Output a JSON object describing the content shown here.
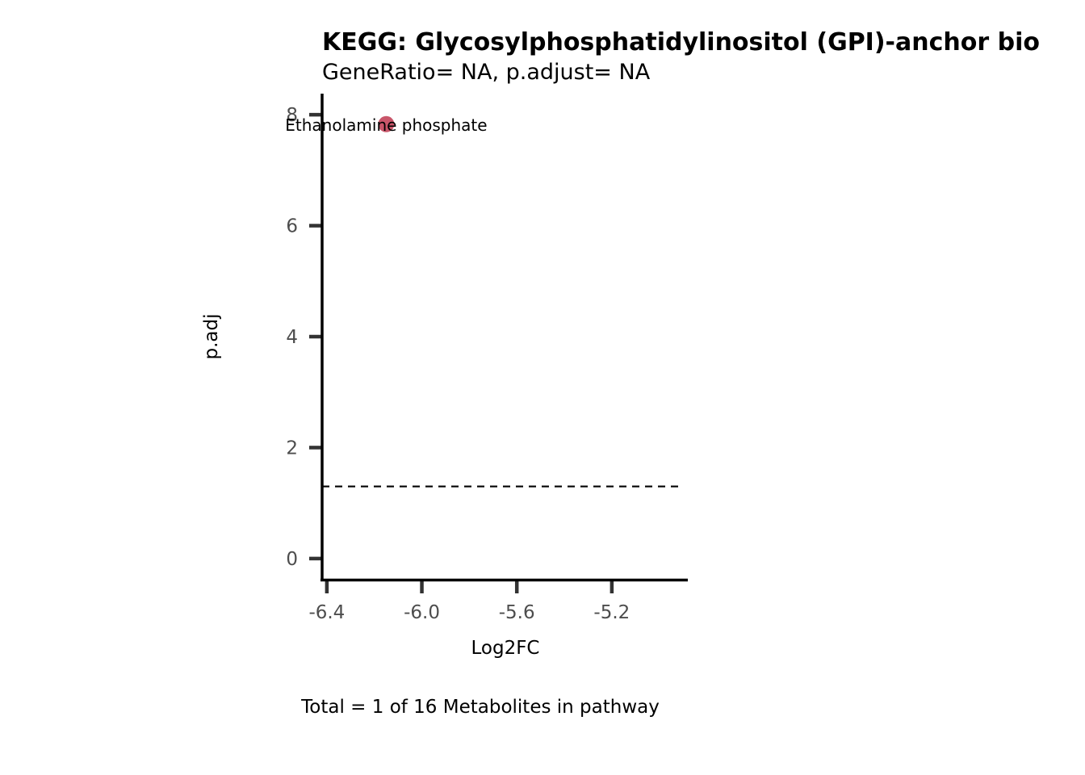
{
  "chart_data": {
    "type": "scatter",
    "title": "KEGG: Glycosylphosphatidylinositol (GPI)-anchor bio",
    "subtitle": "GeneRatio= NA, p.adjust= NA",
    "xlabel": "Log2FC",
    "ylabel": "p.adj",
    "caption": "Total = 1 of 16 Metabolites in pathway",
    "xlim": [
      -6.42,
      -4.88
    ],
    "ylim": [
      -0.38,
      8.38
    ],
    "x_ticks": [
      -6.4,
      -6.0,
      -5.6,
      -5.2
    ],
    "x_tick_labels": [
      "-6.4",
      "-6.0",
      "-5.6",
      "-5.2"
    ],
    "y_ticks": [
      0,
      2,
      4,
      6,
      8
    ],
    "y_tick_labels": [
      "0",
      "2",
      "4",
      "6",
      "8"
    ],
    "threshold_line": {
      "y": 1.3,
      "style": "dashed"
    },
    "points": [
      {
        "x": -6.15,
        "y": 7.83,
        "label": "Ethanolamine phosphate",
        "color": "#c9566a"
      }
    ],
    "grid": false,
    "legend": "none"
  }
}
